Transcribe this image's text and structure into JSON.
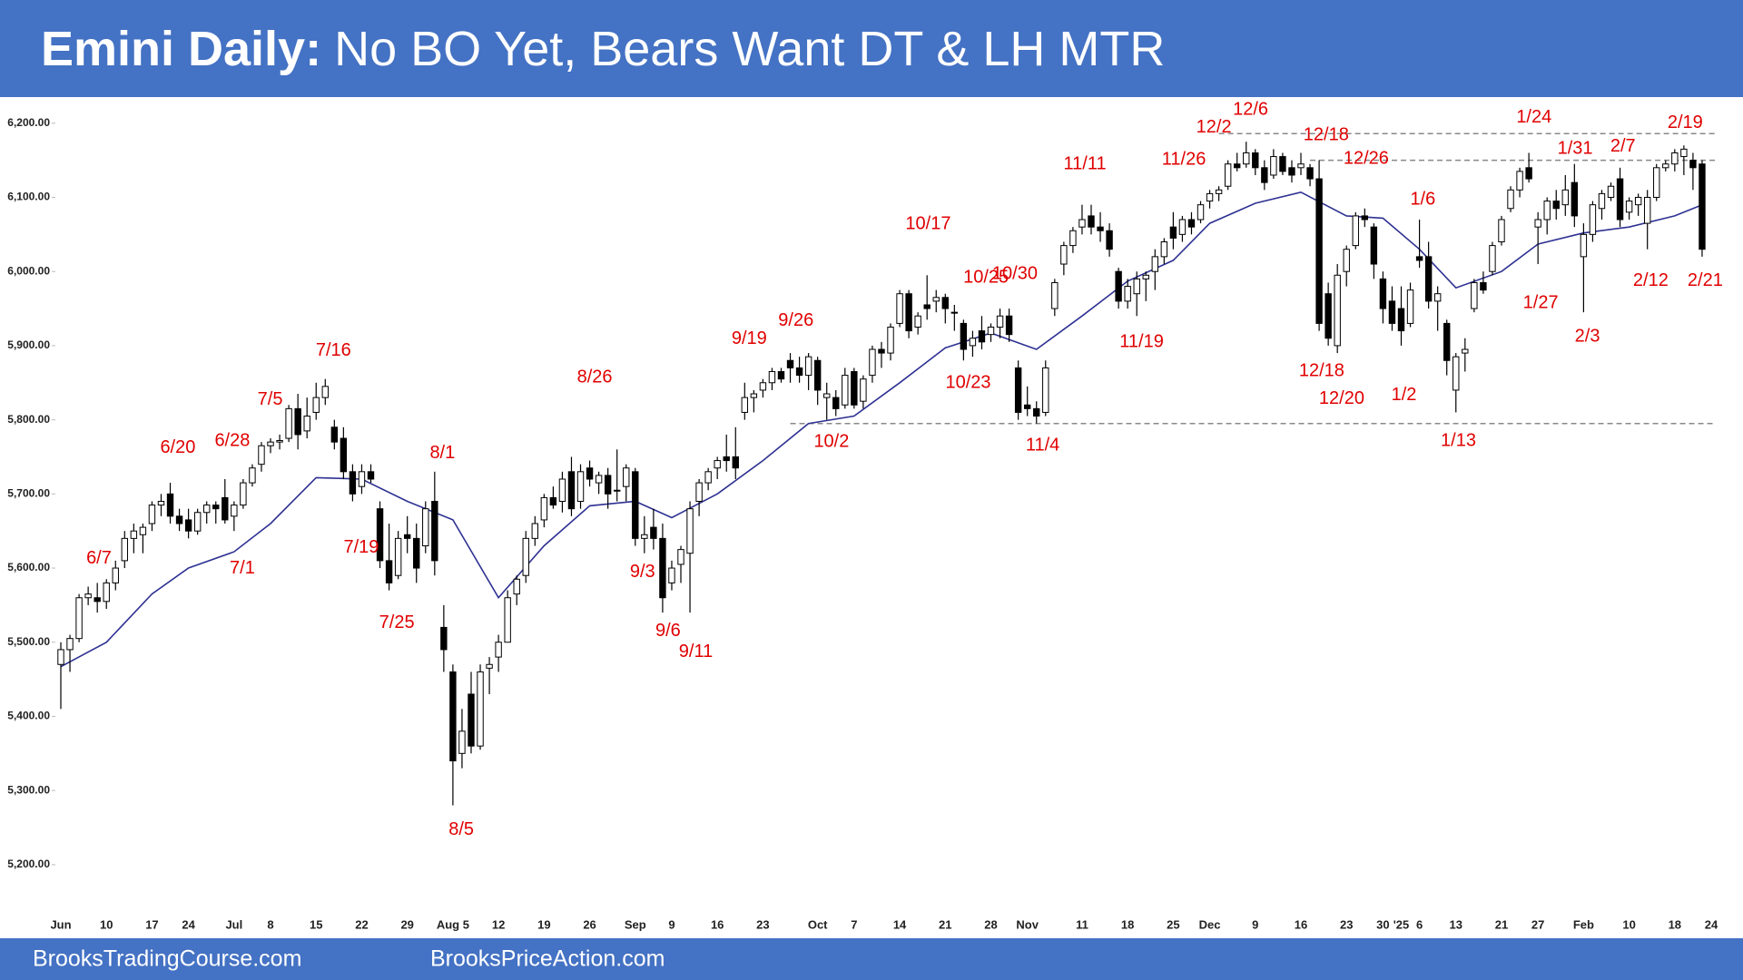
{
  "chart_data": {
    "type": "candlestick",
    "title_bold": "Emini Daily:",
    "title": "No BO Yet, Bears Want DT & LH MTR",
    "footer_left": "BrooksTradingCourse.com",
    "footer_right": "BrooksPriceAction.com",
    "header_color": "#4472c4",
    "up_color": "#ffffff",
    "down_color": "#000000",
    "ma_color": "#2e3192",
    "annotation_color": "#e00000",
    "ylim": [
      5135,
      6234
    ],
    "yticks": [
      {
        "value": 5200,
        "label": "5,200.00"
      },
      {
        "value": 5300,
        "label": "5,300.00"
      },
      {
        "value": 5400,
        "label": "5,400.00"
      },
      {
        "value": 5500,
        "label": "5,500.00"
      },
      {
        "value": 5600,
        "label": "5,600.00"
      },
      {
        "value": 5700,
        "label": "5,700.00"
      },
      {
        "value": 5800,
        "label": "5,800.00"
      },
      {
        "value": 5900,
        "label": "5,900.00"
      },
      {
        "value": 6000,
        "label": "6,000.00"
      },
      {
        "value": 6100,
        "label": "6,100.00"
      },
      {
        "value": 6200,
        "label": "6,200.00"
      }
    ],
    "categories": [
      "Jun",
      null,
      null,
      null,
      null,
      "10",
      null,
      null,
      null,
      null,
      "17",
      null,
      null,
      null,
      "24",
      null,
      null,
      null,
      null,
      "Jul",
      null,
      null,
      null,
      "8",
      null,
      null,
      null,
      null,
      "15",
      null,
      null,
      null,
      null,
      "22",
      null,
      null,
      null,
      null,
      "29",
      null,
      null,
      null,
      null,
      "Aug 5",
      null,
      null,
      null,
      null,
      "12",
      null,
      null,
      null,
      null,
      "19",
      null,
      null,
      null,
      null,
      "26",
      null,
      null,
      null,
      null,
      "Sep",
      null,
      null,
      null,
      "9",
      null,
      null,
      null,
      null,
      "16",
      null,
      null,
      null,
      null,
      "23",
      null,
      null,
      null,
      null,
      null,
      "Oct",
      null,
      null,
      null,
      "7",
      null,
      null,
      null,
      null,
      "14",
      null,
      null,
      null,
      null,
      "21",
      null,
      null,
      null,
      null,
      "28",
      null,
      null,
      null,
      "Nov",
      null,
      null,
      null,
      null,
      null,
      "11",
      null,
      null,
      null,
      null,
      "18",
      null,
      null,
      null,
      null,
      "25",
      null,
      null,
      null,
      "Dec",
      null,
      null,
      null,
      null,
      "9",
      null,
      null,
      null,
      null,
      "16",
      null,
      null,
      null,
      null,
      "23",
      null,
      null,
      null,
      "30",
      null,
      "'25",
      null,
      "6",
      null,
      null,
      null,
      "13",
      null,
      null,
      null,
      null,
      "21",
      null,
      null,
      null,
      "27",
      null,
      null,
      null,
      null,
      "Feb",
      null,
      null,
      null,
      null,
      "10",
      null,
      null,
      null,
      null,
      "18",
      null,
      null,
      null,
      "24"
    ],
    "open": [
      5470,
      5490,
      5505,
      5560,
      5560,
      5555,
      5580,
      5610,
      5640,
      5645,
      5660,
      5685,
      5700,
      5670,
      5665,
      5650,
      5675,
      5685,
      5695,
      5670,
      5685,
      5715,
      5740,
      5765,
      5770,
      5775,
      5815,
      5785,
      5810,
      5830,
      5790,
      5775,
      5730,
      5710,
      5730,
      5680,
      5610,
      5590,
      5645,
      5640,
      5630,
      5690,
      5520,
      5460,
      5350,
      5430,
      5360,
      5465,
      5480,
      5500,
      5565,
      5590,
      5640,
      5665,
      5695,
      5690,
      5730,
      5690,
      5735,
      5715,
      5725,
      5705,
      5710,
      5730,
      5640,
      5655,
      5640,
      5580,
      5605,
      5620,
      5690,
      5715,
      5735,
      5750,
      5750,
      5810,
      5830,
      5840,
      5850,
      5865,
      5880,
      5870,
      5860,
      5880,
      5830,
      5830,
      5820,
      5865,
      5825,
      5860,
      5895,
      5890,
      5930,
      5970,
      5925,
      5955,
      5960,
      5965,
      5945,
      5930,
      5900,
      5920,
      5915,
      5925,
      5940,
      5870,
      5820,
      5815,
      5810,
      5950,
      6010,
      6035,
      6060,
      6075,
      6060,
      6055,
      6000,
      5960,
      5970,
      5990,
      6000,
      6020,
      6060,
      6050,
      6070,
      6070,
      6095,
      6105,
      6115,
      6145,
      6145,
      6160,
      6140,
      6130,
      6155,
      6140,
      6140,
      6140,
      6125,
      5970,
      5900,
      6000,
      6035,
      6075,
      6060,
      5990,
      5960,
      5950,
      5930,
      6020,
      6020,
      5960,
      5930,
      5840,
      5890,
      5950,
      5985,
      6000,
      6040,
      6085,
      6110,
      6140,
      6060,
      6070,
      6095,
      6090,
      6120,
      6020,
      6050,
      6085,
      6100,
      6125,
      6080,
      6090,
      6065,
      6100,
      6140,
      6145,
      6155,
      6150,
      6145,
      null
    ],
    "high": [
      5500,
      5510,
      5565,
      5575,
      5580,
      5585,
      5610,
      5650,
      5660,
      5660,
      5690,
      5700,
      5715,
      5680,
      5680,
      5680,
      5690,
      5690,
      5720,
      5690,
      5720,
      5740,
      5770,
      5775,
      5780,
      5820,
      5835,
      5830,
      5850,
      5855,
      5800,
      5790,
      5740,
      5740,
      5740,
      5690,
      5660,
      5650,
      5670,
      5660,
      5690,
      5730,
      5550,
      5470,
      5410,
      5460,
      5470,
      5480,
      5510,
      5570,
      5590,
      5650,
      5670,
      5700,
      5710,
      5730,
      5750,
      5740,
      5745,
      5730,
      5735,
      5760,
      5740,
      5735,
      5670,
      5680,
      5660,
      5610,
      5630,
      5690,
      5720,
      5735,
      5750,
      5780,
      5790,
      5850,
      5840,
      5855,
      5870,
      5870,
      5890,
      5885,
      5890,
      5885,
      5850,
      5840,
      5870,
      5870,
      5860,
      5900,
      5905,
      5930,
      5975,
      5975,
      5945,
      5995,
      5975,
      5970,
      5955,
      5935,
      5920,
      5940,
      5930,
      5950,
      5950,
      5880,
      5845,
      5825,
      5880,
      5990,
      6040,
      6060,
      6090,
      6090,
      6080,
      6065,
      6005,
      5990,
      6000,
      6000,
      6030,
      6045,
      6080,
      6075,
      6080,
      6095,
      6110,
      6115,
      6150,
      6160,
      6175,
      6165,
      6150,
      6165,
      6160,
      6150,
      6160,
      6145,
      6150,
      5985,
      6010,
      6035,
      6080,
      6085,
      6065,
      6000,
      5980,
      5980,
      5985,
      6070,
      6040,
      5980,
      5935,
      5890,
      5910,
      5990,
      6000,
      6040,
      6075,
      6115,
      6140,
      6160,
      6080,
      6100,
      6110,
      6130,
      6145,
      6065,
      6095,
      6110,
      6120,
      6140,
      6100,
      6105,
      6110,
      6145,
      6150,
      6165,
      6170,
      6160,
      6150,
      null
    ],
    "low": [
      5410,
      5460,
      5500,
      5550,
      5540,
      5545,
      5570,
      5600,
      5620,
      5620,
      5650,
      5670,
      5660,
      5650,
      5640,
      5645,
      5660,
      5660,
      5660,
      5650,
      5680,
      5710,
      5730,
      5755,
      5760,
      5770,
      5760,
      5775,
      5800,
      5820,
      5760,
      5720,
      5690,
      5700,
      5715,
      5600,
      5570,
      5585,
      5620,
      5580,
      5620,
      5590,
      5460,
      5280,
      5330,
      5350,
      5355,
      5430,
      5460,
      5500,
      5550,
      5580,
      5630,
      5655,
      5680,
      5675,
      5670,
      5680,
      5710,
      5700,
      5680,
      5690,
      5690,
      5630,
      5620,
      5625,
      5540,
      5570,
      5580,
      5540,
      5670,
      5705,
      5720,
      5730,
      5720,
      5800,
      5810,
      5830,
      5840,
      5850,
      5850,
      5850,
      5840,
      5820,
      5800,
      5805,
      5815,
      5815,
      5815,
      5850,
      5870,
      5880,
      5925,
      5910,
      5915,
      5935,
      5945,
      5930,
      5920,
      5880,
      5885,
      5895,
      5905,
      5910,
      5905,
      5800,
      5805,
      5795,
      5805,
      5940,
      5995,
      6025,
      6050,
      6050,
      6040,
      6020,
      5950,
      5950,
      5940,
      5960,
      5975,
      6010,
      6030,
      6040,
      6050,
      6065,
      6085,
      6095,
      6110,
      6135,
      6140,
      6130,
      6110,
      6125,
      6130,
      6120,
      6130,
      6115,
      5920,
      5900,
      5890,
      5980,
      6030,
      6060,
      5990,
      5930,
      5920,
      5900,
      5925,
      6005,
      5950,
      5920,
      5860,
      5810,
      5865,
      5945,
      5970,
      5995,
      6035,
      6080,
      6100,
      6120,
      6010,
      6050,
      6070,
      6075,
      6060,
      5945,
      6040,
      6070,
      6095,
      6060,
      6070,
      6075,
      6030,
      6095,
      6135,
      6135,
      6130,
      6110,
      6020,
      null
    ],
    "close": [
      5490,
      5505,
      5560,
      5565,
      5555,
      5580,
      5600,
      5640,
      5650,
      5655,
      5685,
      5690,
      5670,
      5660,
      5650,
      5675,
      5685,
      5680,
      5665,
      5685,
      5715,
      5735,
      5765,
      5770,
      5772,
      5815,
      5780,
      5805,
      5830,
      5845,
      5770,
      5730,
      5700,
      5730,
      5720,
      5610,
      5580,
      5640,
      5640,
      5600,
      5680,
      5610,
      5490,
      5340,
      5380,
      5360,
      5460,
      5470,
      5500,
      5560,
      5585,
      5640,
      5660,
      5695,
      5685,
      5720,
      5680,
      5730,
      5720,
      5725,
      5700,
      5705,
      5735,
      5640,
      5645,
      5640,
      5560,
      5600,
      5625,
      5680,
      5715,
      5730,
      5745,
      5745,
      5735,
      5830,
      5835,
      5850,
      5865,
      5855,
      5870,
      5860,
      5885,
      5840,
      5835,
      5815,
      5860,
      5820,
      5855,
      5895,
      5890,
      5925,
      5970,
      5920,
      5940,
      5950,
      5965,
      5950,
      5945,
      5895,
      5910,
      5905,
      5925,
      5940,
      5915,
      5810,
      5815,
      5805,
      5870,
      5985,
      6035,
      6055,
      6070,
      6060,
      6055,
      6030,
      5960,
      5980,
      5990,
      5995,
      6020,
      6040,
      6045,
      6070,
      6060,
      6090,
      6105,
      6110,
      6145,
      6140,
      6160,
      6140,
      6120,
      6155,
      6135,
      6130,
      6145,
      6125,
      5930,
      5910,
      5995,
      6030,
      6075,
      6070,
      6010,
      5950,
      5930,
      5920,
      5975,
      6015,
      5960,
      5970,
      5880,
      5885,
      5895,
      5985,
      5975,
      6035,
      6070,
      6110,
      6135,
      6125,
      6070,
      6095,
      6085,
      6110,
      6075,
      6050,
      6090,
      6105,
      6115,
      6070,
      6095,
      6100,
      6100,
      6140,
      6145,
      6160,
      6165,
      6140,
      6030,
      null
    ],
    "ma": {
      "x": [
        0,
        5,
        10,
        14,
        19,
        23,
        28,
        33,
        38,
        43,
        48,
        53,
        58,
        63,
        67,
        72,
        77,
        82,
        87,
        92,
        97,
        102,
        107,
        112,
        117,
        122,
        126,
        131,
        136,
        141,
        145,
        149,
        153,
        158,
        162,
        167,
        172,
        177,
        180
      ],
      "values": [
        5467,
        5500,
        5565,
        5600,
        5622,
        5660,
        5722,
        5720,
        5690,
        5665,
        5560,
        5630,
        5684,
        5690,
        5668,
        5700,
        5745,
        5795,
        5805,
        5850,
        5897,
        5917,
        5895,
        5940,
        5987,
        6015,
        6065,
        6092,
        6107,
        6075,
        6072,
        6030,
        5978,
        6000,
        6037,
        6052,
        6060,
        6075,
        6090
      ]
    },
    "reference_lines": [
      6186,
      6150,
      5795
    ],
    "annotations": [
      "6/7",
      "6/20",
      "6/28",
      "7/1",
      "7/5",
      "7/16",
      "7/19",
      "7/25",
      "8/1",
      "8/5",
      "8/26",
      "9/3",
      "9/6",
      "9/11",
      "9/19",
      "9/26",
      "10/2",
      "10/17",
      "10/25",
      "10/30",
      "10/23",
      "11/4",
      "11/11",
      "11/19",
      "11/26",
      "12/2",
      "12/6",
      "12/18",
      "12/26",
      "12/18",
      "12/20",
      "1/2",
      "1/6",
      "1/13",
      "1/24",
      "1/27",
      "1/31",
      "2/3",
      "2/7",
      "2/12",
      "2/19",
      "2/21"
    ]
  }
}
